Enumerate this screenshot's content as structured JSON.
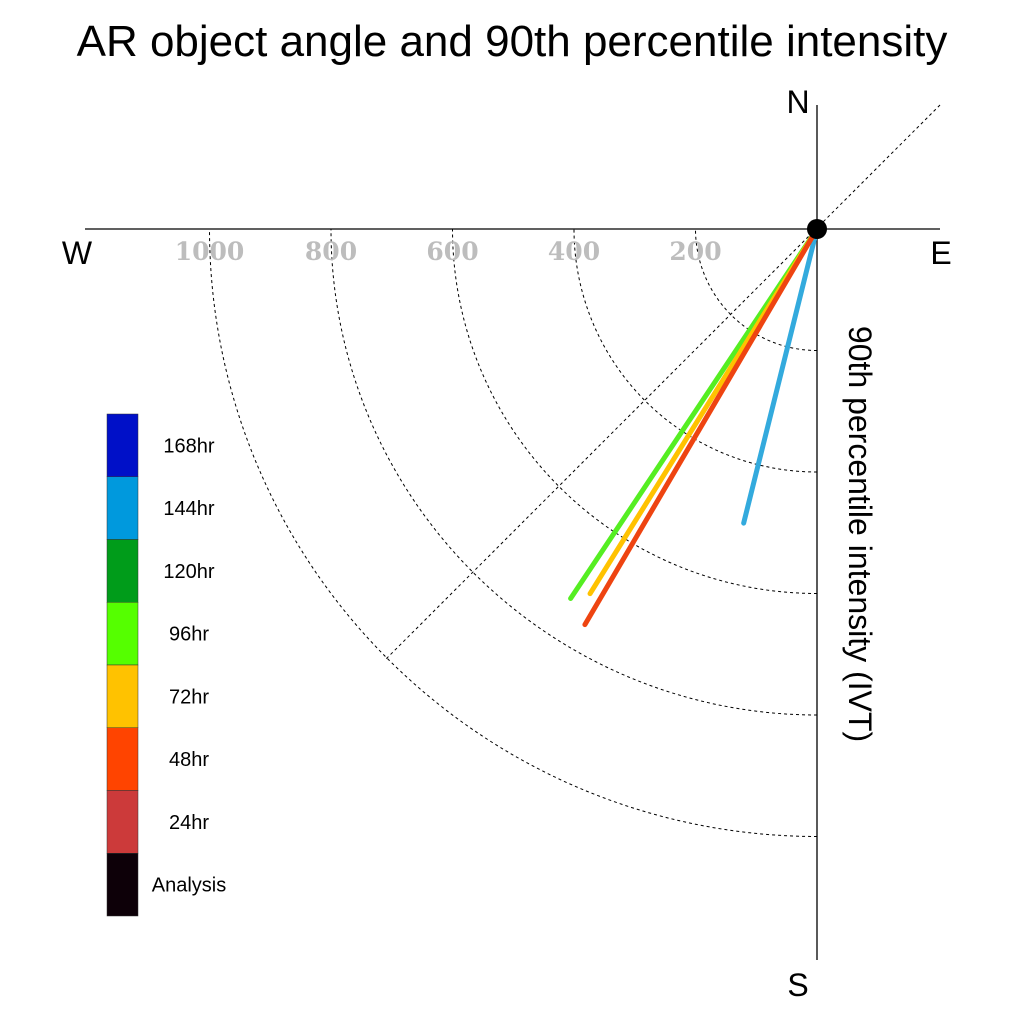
{
  "chart_data": {
    "type": "polar-vector",
    "title": "AR object angle and 90th percentile intensity",
    "compass": {
      "north": "N",
      "south": "S",
      "east": "E",
      "west": "W"
    },
    "radial_axis_label": "90th percentile intensity (IVT)",
    "radial_ticks": [
      200,
      400,
      600,
      800,
      1000
    ],
    "radial_tick_labels": [
      "200",
      "400",
      "600",
      "800",
      "1000"
    ],
    "grid": true,
    "legend_position": "left",
    "legend": [
      {
        "label": "168hr",
        "color": "#0010c8"
      },
      {
        "label": "144hr",
        "color": "#0099dd"
      },
      {
        "label": "120hr",
        "color": "#009c1a"
      },
      {
        "label": "96hr",
        "color": "#55ff00"
      },
      {
        "label": "72hr",
        "color": "#ffc200"
      },
      {
        "label": "48hr",
        "color": "#ff4400"
      },
      {
        "label": "24hr",
        "color": "#cc3a3a"
      },
      {
        "label": "Analysis",
        "color": "#0d0008"
      }
    ],
    "series": [
      {
        "name": "144hr",
        "color": "#33aadd",
        "angle_deg_from_south_toward_west": 14.0,
        "intensity": 499
      },
      {
        "name": "96hr",
        "color": "#55ee22",
        "angle_deg_from_south_toward_west": 33.7,
        "intensity": 731
      },
      {
        "name": "72hr",
        "color": "#ffc200",
        "angle_deg_from_south_toward_west": 31.9,
        "intensity": 707
      },
      {
        "name": "48hr",
        "color": "#ee4411",
        "angle_deg_from_south_toward_west": 30.4,
        "intensity": 755
      }
    ]
  }
}
